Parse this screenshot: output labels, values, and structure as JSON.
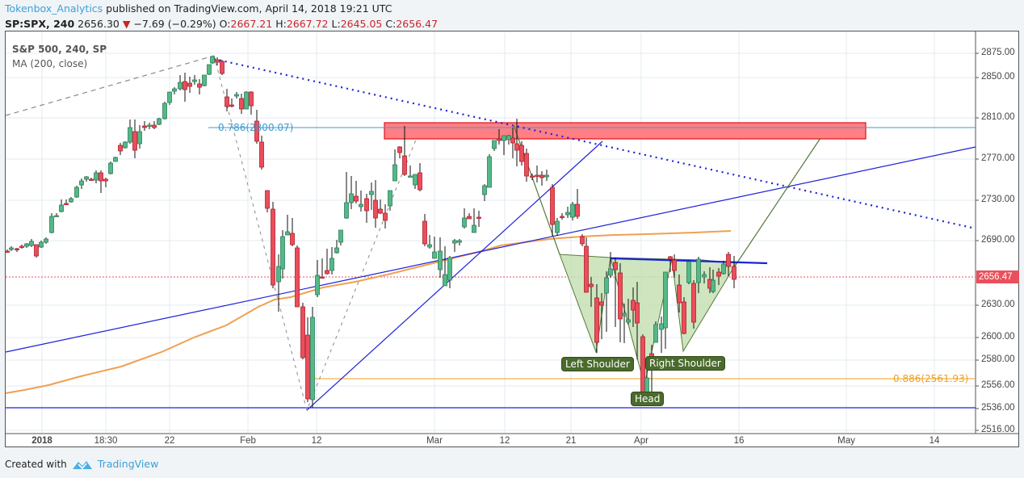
{
  "header": {
    "author": "Tokenbox_Analytics",
    "published_text": " published on TradingView.com, April 14, 2018 19:21 UTC",
    "symbol": "SP:SPX, 240",
    "last": "2656.30",
    "change": "−7.69 (−0.29%)",
    "change_direction": "down",
    "o_label": "O:",
    "o": "2667.21",
    "h_label": "H:",
    "h": "2667.72",
    "l_label": "L:",
    "l": "2645.05",
    "c_label": "C:",
    "c": "2656.47"
  },
  "legend": {
    "series": "S&P 500, 240, SP",
    "indicator": "MA (200, close)"
  },
  "annotations": {
    "fib_786": "0.786(2800.07)",
    "fib_886": "0.886(2561.93)",
    "left_shoulder": "Left Shoulder",
    "head": "Head",
    "right_shoulder": "Right Shoulder"
  },
  "price_tag": "2656.47",
  "footer": {
    "created_with": "Created with",
    "brand": "TradingView"
  },
  "colors": {
    "up": "#53b987",
    "down": "#eb4d5c",
    "ma": "#f0a050",
    "trend_blue": "#1e22d8",
    "resistance_zone": "#ff7f84",
    "pattern_fill": "#c6e0b4",
    "tag_bg": "#4a6b2c",
    "fib_786": "#3b9bd0",
    "fib_886": "#f0a020"
  },
  "chart_data": {
    "type": "candlestick",
    "title": "S&P 500, 240, SP",
    "indicator": "MA (200, close)",
    "yaxis": {
      "ticks": [
        2875,
        2850,
        2810,
        2770,
        2730,
        2690,
        2656.47,
        2630,
        2600,
        2580,
        2556,
        2536,
        2516
      ],
      "labels": [
        "2875.00",
        "2850.00",
        "2810.00",
        "2770.00",
        "2730.00",
        "2690.00",
        "2656.47",
        "2630.00",
        "2600.00",
        "2580.00",
        "2556.00",
        "2536.00",
        "2516.00"
      ],
      "range": [
        2516,
        2890
      ]
    },
    "xaxis": {
      "labels": [
        "2018",
        "18:30",
        "22",
        "Feb",
        "12",
        "Mar",
        "12",
        "21",
        "Apr",
        "16",
        "May",
        "14"
      ]
    },
    "key_levels": {
      "fib_0786": 2800.07,
      "fib_0886": 2561.93,
      "last_close": 2656.47,
      "support": 2536
    },
    "pattern": "Inverse Head and Shoulders",
    "pattern_points": {
      "left_shoulder": 2588,
      "head": 2553,
      "right_shoulder": 2588,
      "neckline": 2672
    },
    "swing_points": {
      "jan_high": 2872,
      "feb_low": 2532,
      "mar_high": 2801
    },
    "resistance_zone": [
      2788,
      2803
    ]
  }
}
